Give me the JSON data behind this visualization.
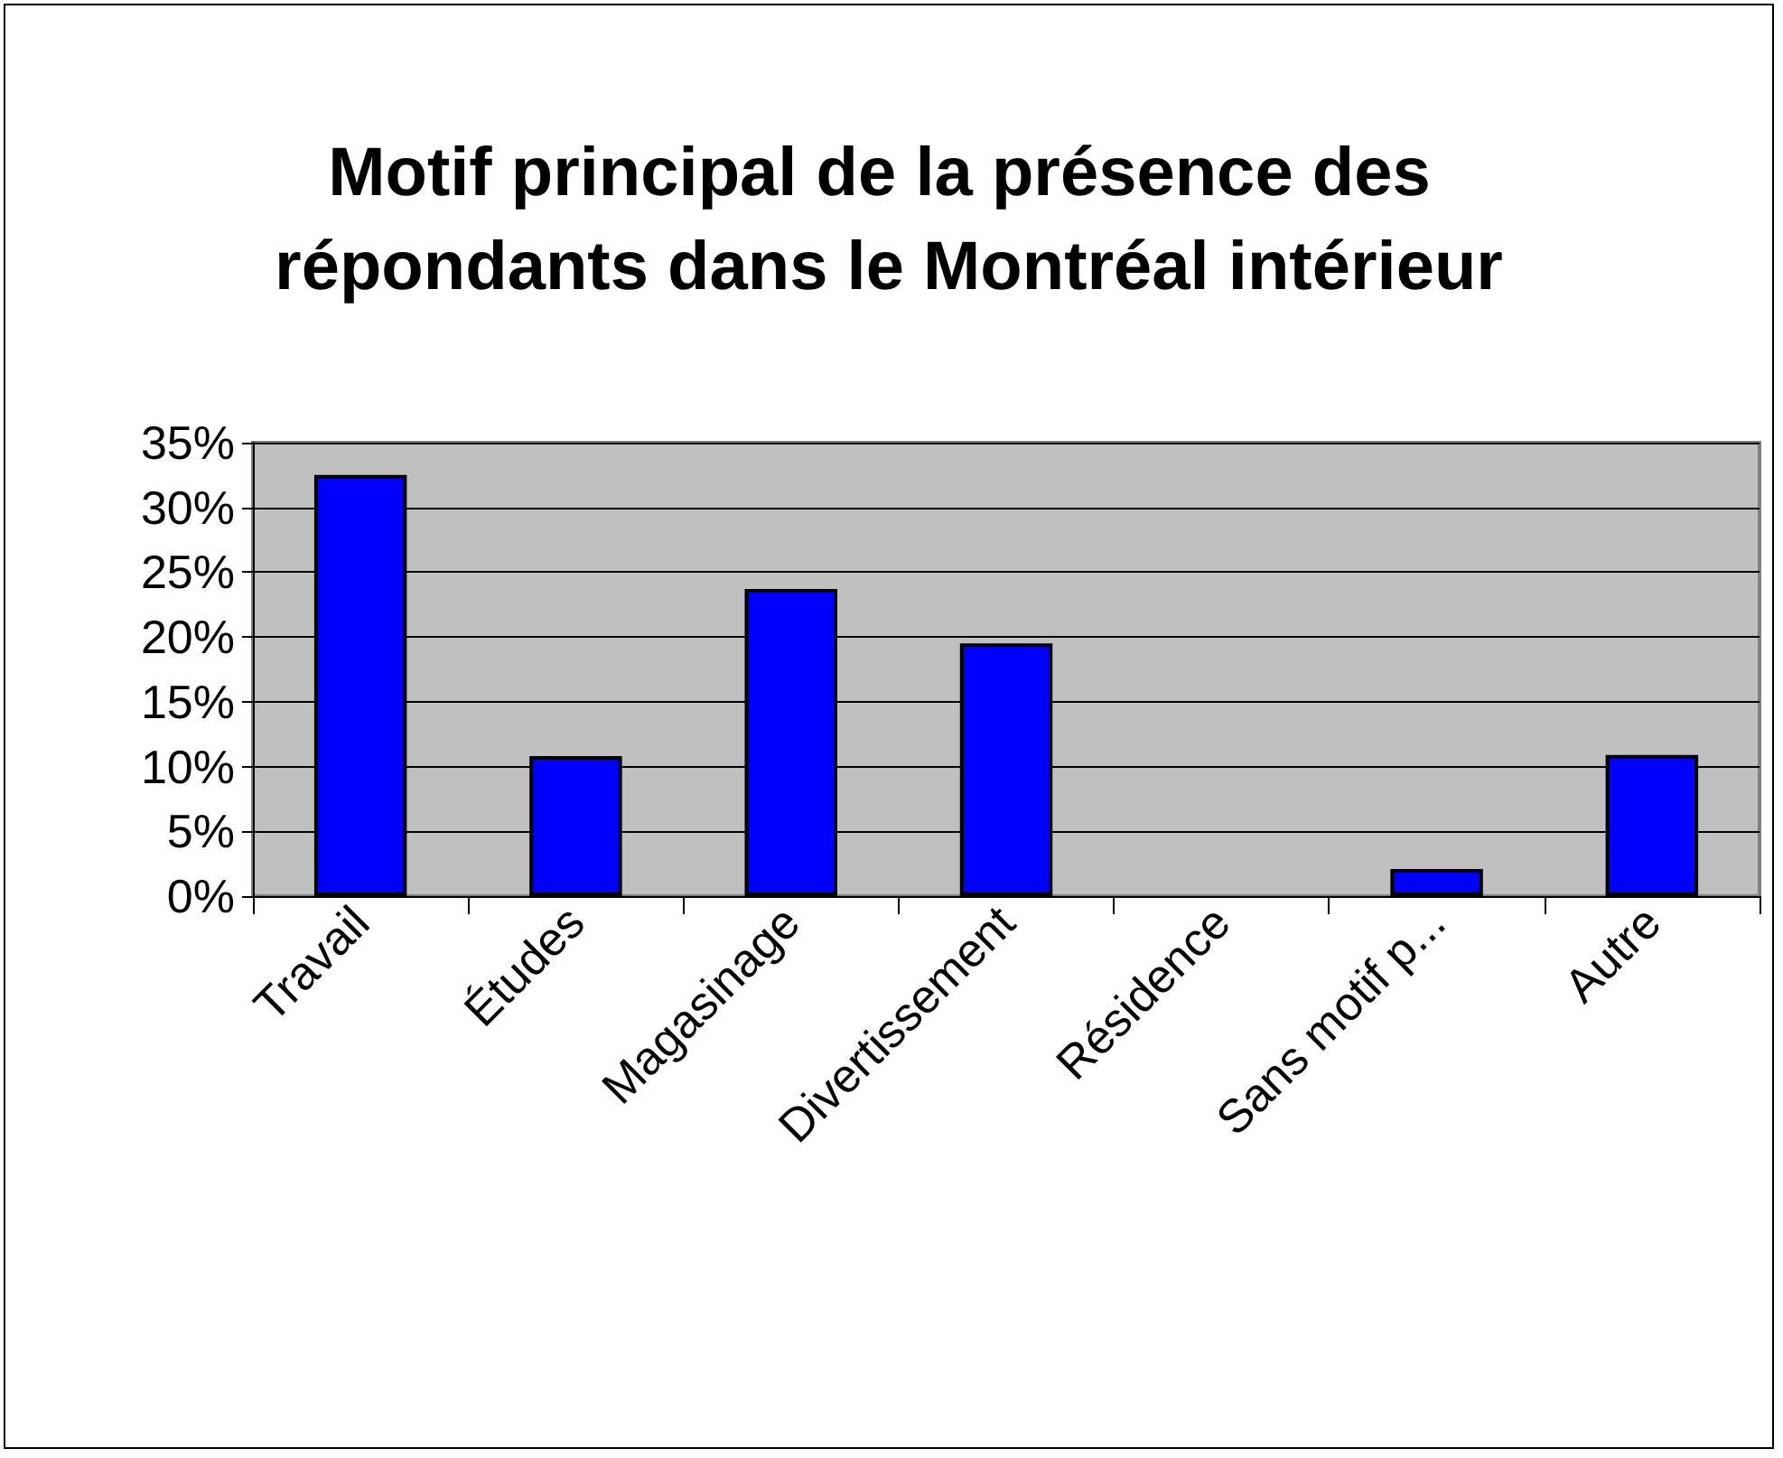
{
  "chart_data": {
    "type": "bar",
    "title": "Motif principal de la présence des répondants dans le Montréal intérieur",
    "categories": [
      "Travail",
      "Études",
      "Magasinage",
      "Divertissement",
      "Résidence",
      "Sans motif p...",
      "Autre"
    ],
    "values": [
      32.5,
      10.8,
      23.7,
      19.5,
      0,
      2.1,
      10.9
    ],
    "color": "#0000ff",
    "ylim": [
      0,
      35
    ],
    "yticks": [
      {
        "value": 0,
        "label": "0%"
      },
      {
        "value": 5,
        "label": "5%"
      },
      {
        "value": 10,
        "label": "10%"
      },
      {
        "value": 15,
        "label": "15%"
      },
      {
        "value": 20,
        "label": "20%"
      },
      {
        "value": 25,
        "label": "25%"
      },
      {
        "value": 30,
        "label": "30%"
      },
      {
        "value": 35,
        "label": "35%"
      }
    ],
    "grid": "y"
  }
}
